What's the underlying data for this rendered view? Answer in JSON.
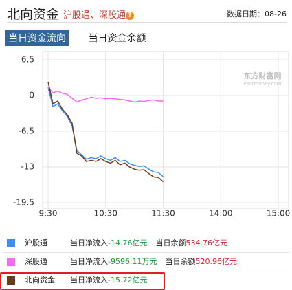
{
  "header": {
    "title": "北向资金",
    "subtitle": "沪股通、深股通",
    "help_icon": "?",
    "date_label": "数据日期：",
    "date": "08-26"
  },
  "tabs": [
    "当日资金流向",
    "当日资金余额"
  ],
  "watermark": {
    "text": "东方财富网",
    "sub": "eastmoney.com"
  },
  "chart_data": {
    "type": "line",
    "x": [
      0,
      5,
      10,
      15,
      20,
      25,
      30,
      35,
      40,
      45,
      50,
      55,
      60,
      65,
      70,
      75,
      80,
      85,
      90,
      95,
      100,
      105,
      110,
      115,
      120
    ],
    "xlim": [
      0,
      240
    ],
    "xticks": [
      {
        "value": 0,
        "label": "9:30"
      },
      {
        "value": 60,
        "label": "10:30"
      },
      {
        "value": 120,
        "label": "11:30"
      },
      {
        "value": 180,
        "label": "14:00"
      },
      {
        "value": 240,
        "label": "15:00"
      }
    ],
    "ylim": [
      -19.5,
      6.5
    ],
    "yticks": [
      6.5,
      0,
      -6.5,
      -13,
      -19.5
    ],
    "grid": true,
    "series": [
      {
        "name": "沪股通",
        "color": "#3d8ef0",
        "values": [
          1.5,
          -2.0,
          -1.5,
          -2.8,
          -3.8,
          -5.5,
          -10.0,
          -10.8,
          -11.6,
          -11.3,
          -11.5,
          -11.0,
          -11.5,
          -11.8,
          -11.3,
          -12.0,
          -11.8,
          -12.4,
          -12.7,
          -12.9,
          -12.8,
          -13.4,
          -13.9,
          -14.0,
          -14.76
        ]
      },
      {
        "name": "深股通",
        "color": "#f46af4",
        "values": [
          1.5,
          0.5,
          0.8,
          0.4,
          0.2,
          -0.5,
          -1.2,
          -0.8,
          -0.6,
          -0.3,
          -0.5,
          -0.4,
          -0.6,
          -0.5,
          -0.6,
          -0.7,
          -0.8,
          -1.0,
          -1.2,
          -1.0,
          -1.1,
          -0.9,
          -0.8,
          -1.0,
          -1.0
        ]
      },
      {
        "name": "北向资金",
        "color": "#6b3a1b",
        "values": [
          2.5,
          -1.5,
          -1.0,
          -2.5,
          -3.5,
          -5.0,
          -10.5,
          -11.0,
          -12.0,
          -11.8,
          -12.0,
          -11.5,
          -12.0,
          -12.3,
          -11.8,
          -12.6,
          -12.3,
          -13.0,
          -13.4,
          -13.6,
          -13.5,
          -14.2,
          -14.8,
          -14.9,
          -15.7
        ]
      }
    ]
  },
  "legend_rows": [
    {
      "net_label": "当日净流入",
      "net": "-14.76亿元",
      "balance_label": "当日余额",
      "balance": "534.76亿元"
    },
    {
      "net_label": "当日净流入",
      "net": "-9596.11万元",
      "balance_label": "当日余额",
      "balance": "520.96亿元"
    },
    {
      "net_label": "当日净流入",
      "net": "-15.72亿元"
    }
  ]
}
